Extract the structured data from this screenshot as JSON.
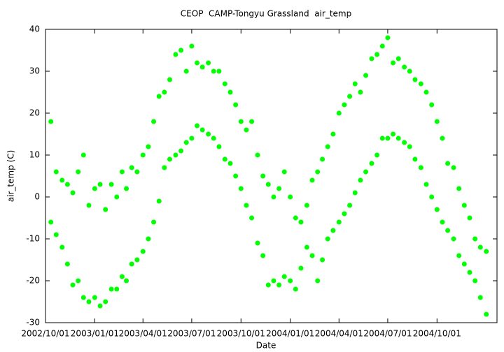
{
  "chart_data": {
    "type": "scatter",
    "title": "CEOP  CAMP-Tongyu Grassland  air_temp",
    "x_label": "Date",
    "y_label": "air_temp (C)",
    "color": "#00ff00",
    "ylim": [
      -30,
      40
    ],
    "yticks": [
      -30,
      -20,
      -10,
      0,
      10,
      20,
      30,
      40
    ],
    "xlim": [
      "2002/10/01",
      "2005/01/21"
    ],
    "xticks": [
      "2002/10/01",
      "2003/01/01",
      "2003/04/01",
      "2003/07/01",
      "2003/10/01",
      "2004/01/01",
      "2004/04/01",
      "2004/07/01",
      "2004/10/01"
    ],
    "x": [
      "2002/10/11",
      "2002/10/11",
      "2002/10/21",
      "2002/10/21",
      "2002/11/01",
      "2002/11/01",
      "2002/11/11",
      "2002/11/11",
      "2002/11/21",
      "2002/11/21",
      "2002/12/01",
      "2002/12/01",
      "2002/12/11",
      "2002/12/11",
      "2002/12/21",
      "2002/12/21",
      "2003/01/01",
      "2003/01/01",
      "2003/01/11",
      "2003/01/11",
      "2003/01/21",
      "2003/01/21",
      "2003/02/01",
      "2003/02/01",
      "2003/02/11",
      "2003/02/11",
      "2003/02/21",
      "2003/02/21",
      "2003/03/01",
      "2003/03/01",
      "2003/03/11",
      "2003/03/11",
      "2003/03/21",
      "2003/03/21",
      "2003/04/01",
      "2003/04/01",
      "2003/04/11",
      "2003/04/11",
      "2003/04/21",
      "2003/04/21",
      "2003/05/01",
      "2003/05/01",
      "2003/05/11",
      "2003/05/11",
      "2003/05/21",
      "2003/05/21",
      "2003/06/01",
      "2003/06/01",
      "2003/06/11",
      "2003/06/11",
      "2003/06/21",
      "2003/06/21",
      "2003/07/01",
      "2003/07/01",
      "2003/07/11",
      "2003/07/11",
      "2003/07/21",
      "2003/07/21",
      "2003/08/01",
      "2003/08/01",
      "2003/08/11",
      "2003/08/11",
      "2003/08/21",
      "2003/08/21",
      "2003/09/01",
      "2003/09/01",
      "2003/09/11",
      "2003/09/11",
      "2003/09/21",
      "2003/09/21",
      "2003/10/01",
      "2003/10/01",
      "2003/10/11",
      "2003/10/11",
      "2003/10/21",
      "2003/10/21",
      "2003/11/01",
      "2003/11/01",
      "2003/11/11",
      "2003/11/11",
      "2003/11/21",
      "2003/11/21",
      "2003/12/01",
      "2003/12/01",
      "2003/12/11",
      "2003/12/11",
      "2003/12/21",
      "2003/12/21",
      "2004/01/01",
      "2004/01/01",
      "2004/01/11",
      "2004/01/11",
      "2004/01/21",
      "2004/01/21",
      "2004/02/01",
      "2004/02/01",
      "2004/02/11",
      "2004/02/11",
      "2004/02/21",
      "2004/02/21",
      "2004/03/01",
      "2004/03/01",
      "2004/03/11",
      "2004/03/11",
      "2004/03/21",
      "2004/03/21",
      "2004/04/01",
      "2004/04/01",
      "2004/04/11",
      "2004/04/11",
      "2004/04/21",
      "2004/04/21",
      "2004/05/01",
      "2004/05/01",
      "2004/05/11",
      "2004/05/11",
      "2004/05/21",
      "2004/05/21",
      "2004/06/01",
      "2004/06/01",
      "2004/06/11",
      "2004/06/11",
      "2004/06/21",
      "2004/06/21",
      "2004/07/01",
      "2004/07/01",
      "2004/07/11",
      "2004/07/11",
      "2004/07/21",
      "2004/07/21",
      "2004/08/01",
      "2004/08/01",
      "2004/08/11",
      "2004/08/11",
      "2004/08/21",
      "2004/08/21",
      "2004/09/01",
      "2004/09/01",
      "2004/09/11",
      "2004/09/11",
      "2004/09/21",
      "2004/09/21",
      "2004/10/01",
      "2004/10/01",
      "2004/10/11",
      "2004/10/11",
      "2004/10/21",
      "2004/10/21",
      "2004/11/01",
      "2004/11/01",
      "2004/11/11",
      "2004/11/11",
      "2004/11/21",
      "2004/11/21",
      "2004/12/01",
      "2004/12/01",
      "2004/12/11",
      "2004/12/11",
      "2004/12/21",
      "2004/12/21",
      "2005/01/01",
      "2005/01/01"
    ],
    "values": [
      18,
      -6,
      6,
      -9,
      4,
      -12,
      3,
      -16,
      1,
      -21,
      6,
      -20,
      10,
      -24,
      -2,
      -25,
      2,
      -24,
      3,
      -26,
      -3,
      -25,
      3,
      -22,
      0,
      -22,
      6,
      -19,
      2,
      -20,
      7,
      -16,
      6,
      -15,
      10,
      -13,
      12,
      -10,
      18,
      -6,
      24,
      -1,
      25,
      7,
      28,
      9,
      34,
      10,
      35,
      11,
      30,
      13,
      36,
      14,
      32,
      17,
      31,
      16,
      32,
      15,
      30,
      14,
      30,
      12,
      27,
      9,
      25,
      8,
      22,
      5,
      18,
      2,
      16,
      -2,
      18,
      -5,
      10,
      -11,
      5,
      -14,
      3,
      -21,
      0,
      -20,
      2,
      -21,
      6,
      -19,
      0,
      -20,
      -5,
      -22,
      -6,
      -17,
      -2,
      -12,
      4,
      -14,
      6,
      -20,
      9,
      -15,
      12,
      -10,
      15,
      -8,
      20,
      -6,
      22,
      -4,
      24,
      -2,
      27,
      1,
      25,
      4,
      29,
      6,
      33,
      8,
      34,
      10,
      36,
      14,
      38,
      14,
      32,
      15,
      33,
      14,
      31,
      13,
      30,
      12,
      28,
      9,
      27,
      7,
      25,
      3,
      22,
      0,
      18,
      -3,
      14,
      -6,
      8,
      -8,
      7,
      -10,
      2,
      -14,
      -2,
      -16,
      -5,
      -18,
      -10,
      -20,
      -12,
      -24,
      -13,
      -28
    ]
  }
}
